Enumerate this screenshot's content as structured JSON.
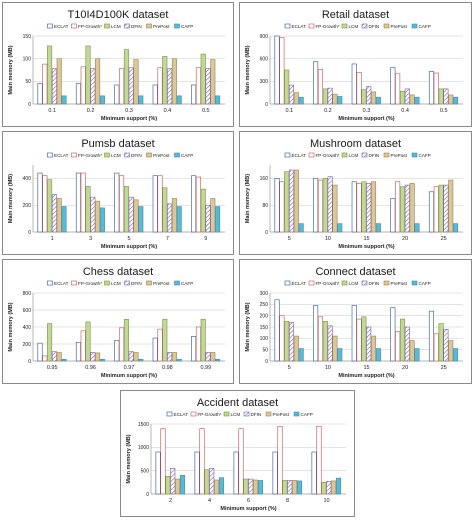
{
  "series_names": [
    "ECLAT",
    "FP-Growth*",
    "LCM",
    "DFIN",
    "PrePost",
    "CAFP"
  ],
  "series_styles": [
    {
      "fill": "#ffffff",
      "stroke": "#2f5496",
      "pattern": "none"
    },
    {
      "fill": "#ffffff",
      "stroke": "#c0504d",
      "pattern": "none"
    },
    {
      "fill": "#c4d79b",
      "stroke": "#77933c",
      "pattern": "none"
    },
    {
      "fill": "#ffffff",
      "stroke": "#7f5fa0",
      "pattern": "diag-purple"
    },
    {
      "fill": "#d9c7a0",
      "stroke": "#a08040",
      "pattern": "none"
    },
    {
      "fill": "#5bb9d6",
      "stroke": "#3a8fab",
      "pattern": "none"
    }
  ],
  "chart_data": [
    {
      "type": "bar",
      "title": "T10I4D100K  dataset",
      "categories": [
        "0.1",
        "0.2",
        "0.3",
        "0.4",
        "0.5"
      ],
      "series": [
        {
          "name": "ECLAT",
          "values": [
            45,
            45,
            42,
            42,
            42
          ]
        },
        {
          "name": "FP-Growth*",
          "values": [
            88,
            82,
            78,
            80,
            80
          ]
        },
        {
          "name": "LCM",
          "values": [
            128,
            128,
            120,
            105,
            110
          ]
        },
        {
          "name": "DFIN",
          "values": [
            78,
            78,
            80,
            78,
            78
          ]
        },
        {
          "name": "PrePost",
          "values": [
            100,
            100,
            98,
            100,
            98
          ]
        },
        {
          "name": "CAFP",
          "values": [
            18,
            18,
            18,
            18,
            18
          ]
        }
      ],
      "xlabel": "Minimum support (%)",
      "ylabel": "Main memory (MB)",
      "ylim": [
        0,
        150
      ],
      "yticks": [
        "0",
        "50",
        "100",
        "150"
      ],
      "legend": "top",
      "grid": true
    },
    {
      "type": "bar",
      "title": "Retail dataset",
      "categories": [
        "0.1",
        "0.2",
        "0.3",
        "0.4",
        "0.5"
      ],
      "series": [
        {
          "name": "ECLAT",
          "values": [
            900,
            560,
            530,
            480,
            430
          ]
        },
        {
          "name": "FP-Growth*",
          "values": [
            880,
            460,
            420,
            400,
            410
          ]
        },
        {
          "name": "LCM",
          "values": [
            450,
            200,
            190,
            170,
            200
          ]
        },
        {
          "name": "DFIN",
          "values": [
            250,
            210,
            230,
            200,
            200
          ]
        },
        {
          "name": "PrePost",
          "values": [
            150,
            130,
            160,
            120,
            120
          ]
        },
        {
          "name": "CAFP",
          "values": [
            90,
            100,
            90,
            90,
            90
          ]
        }
      ],
      "xlabel": "Minimum support (%)",
      "ylabel": "Main memory (MB)",
      "ylim": [
        0,
        900
      ],
      "yticks": [
        "0",
        "300",
        "600",
        "900"
      ],
      "legend": "top",
      "grid": true
    },
    {
      "type": "bar",
      "title": "Pumsb dataset",
      "categories": [
        "1",
        "3",
        "5",
        "7",
        "9"
      ],
      "series": [
        {
          "name": "ECLAT",
          "values": [
            440,
            440,
            440,
            420,
            420
          ]
        },
        {
          "name": "FP-Growth*",
          "values": [
            420,
            440,
            420,
            420,
            410
          ]
        },
        {
          "name": "LCM",
          "values": [
            390,
            340,
            340,
            330,
            320
          ]
        },
        {
          "name": "DFIN",
          "values": [
            280,
            260,
            260,
            210,
            200
          ]
        },
        {
          "name": "PrePost",
          "values": [
            250,
            230,
            240,
            250,
            250
          ]
        },
        {
          "name": "CAFP",
          "values": [
            190,
            180,
            190,
            190,
            190
          ]
        }
      ],
      "xlabel": "Minimum support (%)",
      "ylabel": "Main memory (MB)",
      "ylim": [
        0,
        500
      ],
      "yticks": [
        "0",
        "200",
        "400"
      ],
      "legend": "top",
      "grid": true
    },
    {
      "type": "bar",
      "title": "Mushroom dataset",
      "categories": [
        "5",
        "10",
        "15",
        "20",
        "25"
      ],
      "series": [
        {
          "name": "ECLAT",
          "values": [
            160,
            160,
            150,
            100,
            120
          ]
        },
        {
          "name": "FP-Growth*",
          "values": [
            150,
            155,
            145,
            150,
            135
          ]
        },
        {
          "name": "LCM",
          "values": [
            180,
            160,
            150,
            135,
            140
          ]
        },
        {
          "name": "DFIN",
          "values": [
            185,
            165,
            145,
            140,
            140
          ]
        },
        {
          "name": "PrePost",
          "values": [
            185,
            140,
            150,
            145,
            155
          ]
        },
        {
          "name": "CAFP",
          "values": [
            25,
            25,
            25,
            25,
            25
          ]
        }
      ],
      "xlabel": "Minimum support (%)",
      "ylabel": "Main memory (MB)",
      "ylim": [
        0,
        200
      ],
      "yticks": [
        "0",
        "80",
        "160"
      ],
      "legend": "top",
      "grid": true
    },
    {
      "type": "bar",
      "title": "Chess dataset",
      "categories": [
        "0.95",
        "0.96",
        "0.97",
        "0.98",
        "0.99"
      ],
      "series": [
        {
          "name": "ECLAT",
          "values": [
            210,
            220,
            240,
            270,
            290
          ]
        },
        {
          "name": "FP-Growth*",
          "values": [
            60,
            355,
            390,
            375,
            400
          ]
        },
        {
          "name": "LCM",
          "values": [
            440,
            460,
            490,
            490,
            490
          ]
        },
        {
          "name": "DFIN",
          "values": [
            110,
            100,
            110,
            100,
            100
          ]
        },
        {
          "name": "PrePost",
          "values": [
            100,
            95,
            100,
            100,
            100
          ]
        },
        {
          "name": "CAFP",
          "values": [
            20,
            20,
            20,
            20,
            20
          ]
        }
      ],
      "xlabel": "Minimum support (%)",
      "ylabel": "Main memory (MB)",
      "ylim": [
        0,
        800
      ],
      "yticks": [
        "0",
        "200",
        "400",
        "600",
        "800"
      ],
      "legend": "top",
      "grid": true
    },
    {
      "type": "bar",
      "title": "Connect dataset",
      "categories": [
        "5",
        "10",
        "15",
        "20",
        "25"
      ],
      "series": [
        {
          "name": "ECLAT",
          "values": [
            270,
            245,
            245,
            235,
            220
          ]
        },
        {
          "name": "FP-Growth*",
          "values": [
            200,
            195,
            185,
            130,
            120
          ]
        },
        {
          "name": "LCM",
          "values": [
            175,
            175,
            195,
            185,
            165
          ]
        },
        {
          "name": "DFIN",
          "values": [
            170,
            155,
            150,
            150,
            140
          ]
        },
        {
          "name": "PrePost",
          "values": [
            110,
            110,
            110,
            90,
            90
          ]
        },
        {
          "name": "CAFP",
          "values": [
            55,
            55,
            55,
            55,
            55
          ]
        }
      ],
      "xlabel": "Minimum support (%)",
      "ylabel": "Main memory (MB)",
      "ylim": [
        0,
        300
      ],
      "yticks": [
        "0",
        "50",
        "100",
        "150",
        "200",
        "250",
        "300"
      ],
      "legend": "top",
      "grid": true
    },
    {
      "type": "bar",
      "title": "Accident dataset",
      "categories": [
        "2",
        "4",
        "6",
        "8",
        "10"
      ],
      "series": [
        {
          "name": "ECLAT",
          "values": [
            900,
            900,
            900,
            900,
            900
          ]
        },
        {
          "name": "FP-Growth*",
          "values": [
            1400,
            1400,
            1400,
            1450,
            1450
          ]
        },
        {
          "name": "LCM",
          "values": [
            380,
            520,
            320,
            290,
            250
          ]
        },
        {
          "name": "DFIN",
          "values": [
            550,
            550,
            320,
            290,
            270
          ]
        },
        {
          "name": "PrePost",
          "values": [
            320,
            300,
            300,
            290,
            280
          ]
        },
        {
          "name": "CAFP",
          "values": [
            400,
            350,
            290,
            280,
            340
          ]
        }
      ],
      "xlabel": "Minimum support (%)",
      "ylabel": "Main memory (MB)",
      "ylim": [
        0,
        1500
      ],
      "yticks": [
        "0",
        "500",
        "1000",
        "1500"
      ],
      "legend": "top",
      "grid": true
    }
  ]
}
